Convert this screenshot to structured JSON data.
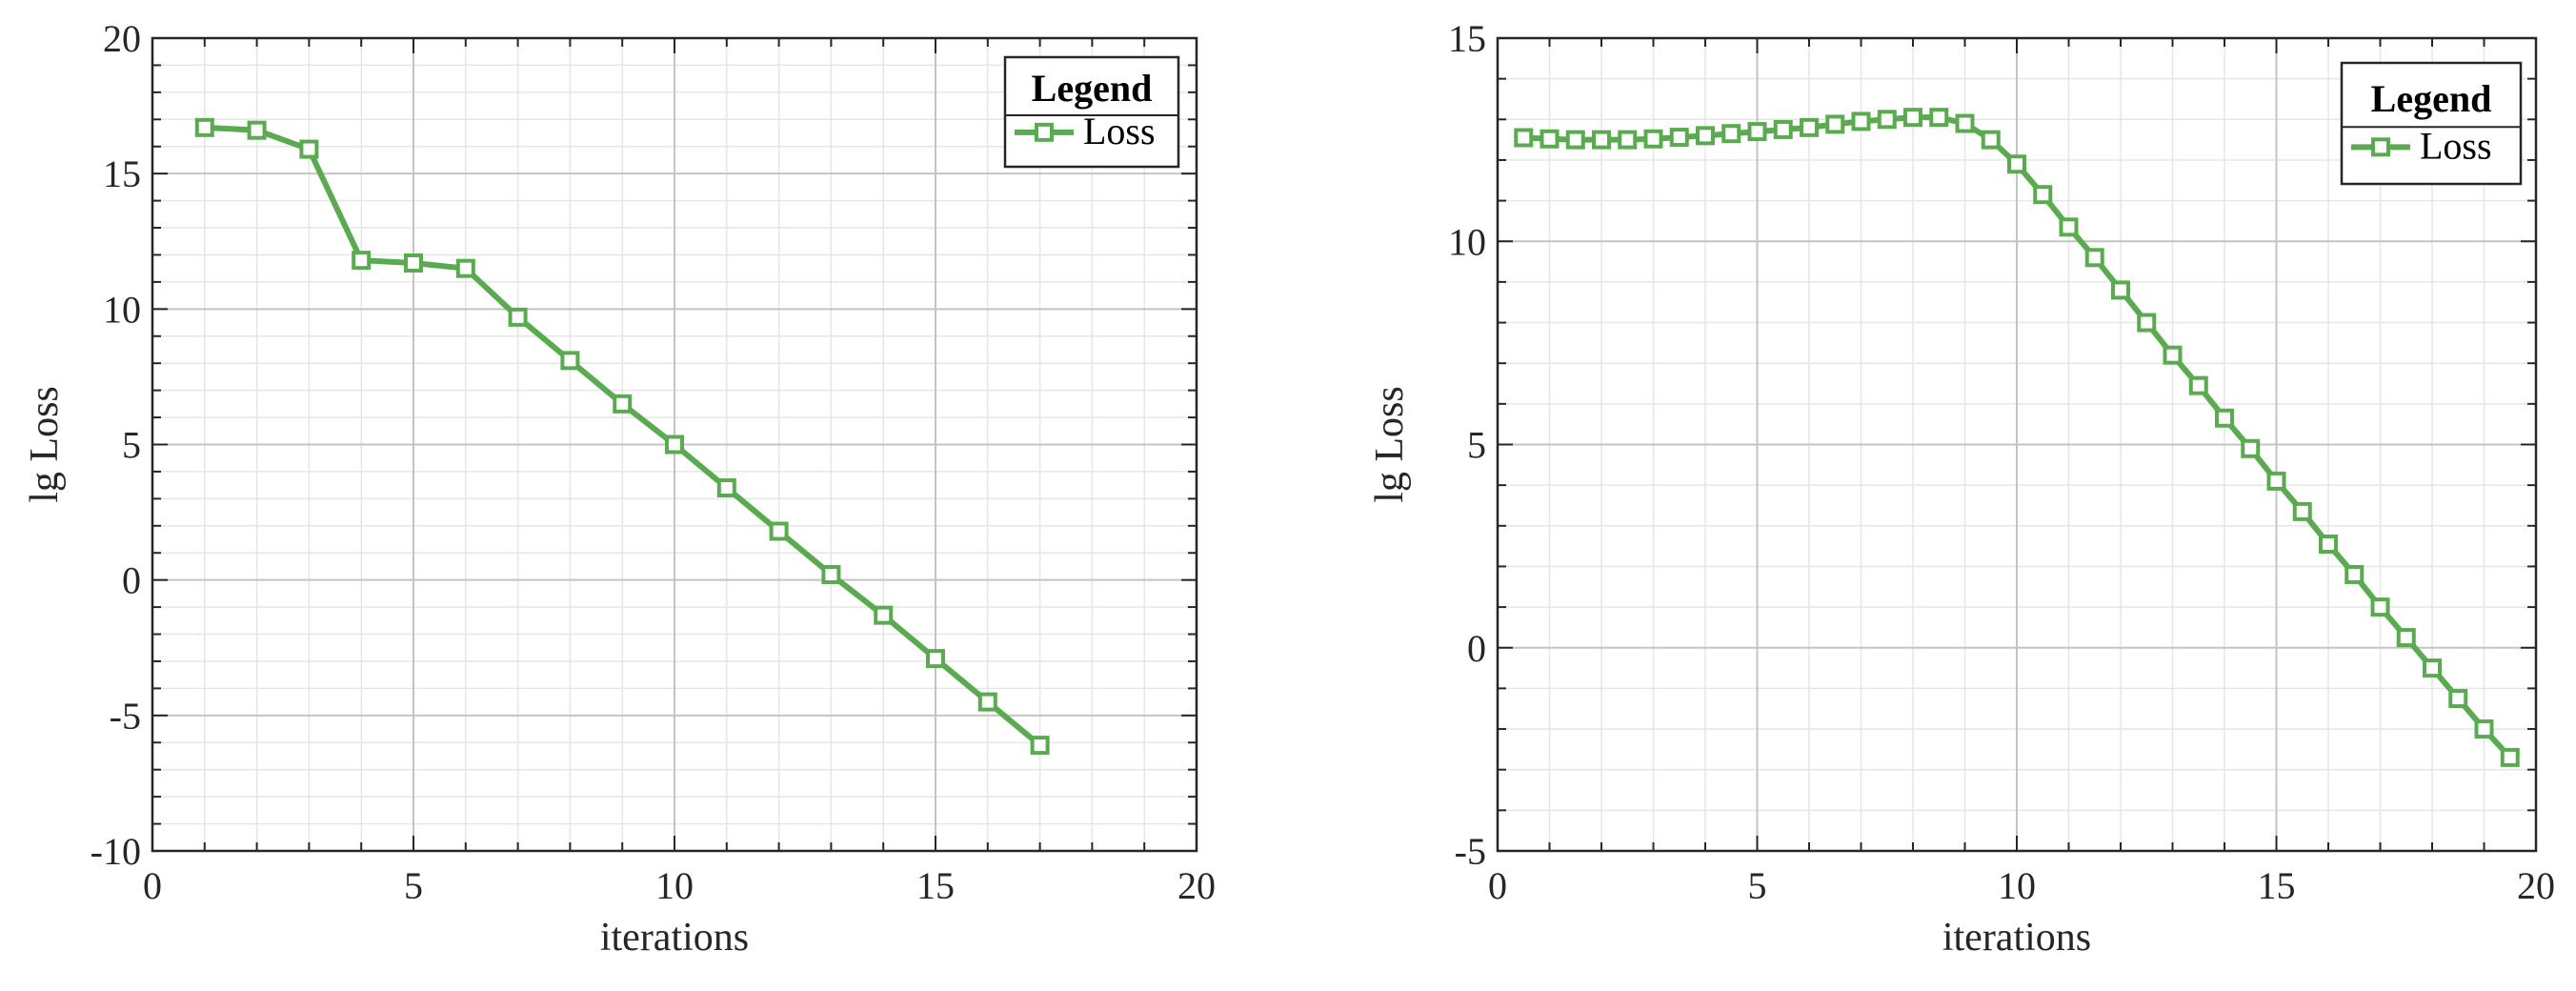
{
  "chart_data": [
    {
      "type": "line",
      "xlabel": "iterations",
      "ylabel": "lg Loss",
      "xlim": [
        0,
        20
      ],
      "ylim": [
        -10,
        20
      ],
      "xticks": [
        0,
        5,
        10,
        15,
        20
      ],
      "yticks": [
        -10,
        -5,
        0,
        5,
        10,
        15,
        20
      ],
      "xtick_labels": [
        "0",
        "5",
        "10",
        "15",
        "20"
      ],
      "ytick_labels": [
        "-10",
        "-5",
        "0",
        "5",
        "10",
        "15",
        "20"
      ],
      "grid": true,
      "minor_grid": true,
      "legend": {
        "title": "Legend",
        "position": "top-right",
        "entries": [
          "Loss"
        ]
      },
      "series": [
        {
          "name": "Loss",
          "color": "#5aab4f",
          "marker": "square",
          "x": [
            1,
            2,
            3,
            4,
            5,
            6,
            7,
            8,
            9,
            10,
            11,
            12,
            13,
            14,
            15,
            16,
            17
          ],
          "y": [
            16.7,
            16.6,
            15.9,
            11.8,
            11.7,
            11.5,
            9.7,
            8.1,
            6.5,
            5.0,
            3.4,
            1.8,
            0.2,
            -1.3,
            -2.9,
            -4.5,
            -6.1
          ]
        }
      ]
    },
    {
      "type": "line",
      "xlabel": "iterations",
      "ylabel": "lg Loss",
      "xlim": [
        0,
        20
      ],
      "ylim": [
        -5,
        15
      ],
      "xticks": [
        0,
        5,
        10,
        15,
        20
      ],
      "yticks": [
        -5,
        0,
        5,
        10,
        15
      ],
      "xtick_labels": [
        "0",
        "5",
        "10",
        "15",
        "20"
      ],
      "ytick_labels": [
        "-5",
        "0",
        "5",
        "10",
        "15"
      ],
      "grid": true,
      "minor_grid": true,
      "legend": {
        "title": "Legend",
        "position": "top-right",
        "entries": [
          "Loss"
        ]
      },
      "series": [
        {
          "name": "Loss",
          "color": "#5aab4f",
          "marker": "square",
          "x": [
            0.5,
            1,
            1.5,
            2,
            2.5,
            3,
            3.5,
            4,
            4.5,
            5,
            5.5,
            6,
            6.5,
            7,
            7.5,
            8,
            8.5,
            9,
            9.5,
            10,
            10.5,
            11,
            11.5,
            12,
            12.5,
            13,
            13.5,
            14,
            14.5,
            15,
            15.5,
            16,
            16.5,
            17,
            17.5,
            18,
            18.5,
            19,
            19.5
          ],
          "y": [
            12.55,
            12.52,
            12.5,
            12.5,
            12.5,
            12.52,
            12.56,
            12.6,
            12.65,
            12.7,
            12.75,
            12.8,
            12.88,
            12.95,
            13.0,
            13.05,
            13.05,
            12.9,
            12.5,
            11.9,
            11.15,
            10.35,
            9.6,
            8.8,
            8.0,
            7.2,
            6.45,
            5.65,
            4.9,
            4.1,
            3.35,
            2.55,
            1.8,
            1.0,
            0.25,
            -0.5,
            -1.25,
            -2.0,
            -2.7
          ]
        }
      ]
    }
  ]
}
